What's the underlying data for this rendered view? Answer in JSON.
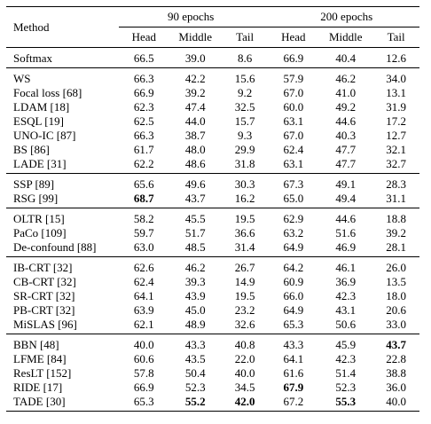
{
  "header": {
    "method": "Method",
    "group1": "90 epochs",
    "group2": "200 epochs",
    "sub": [
      "Head",
      "Middle",
      "Tail",
      "Head",
      "Middle",
      "Tail"
    ]
  },
  "groups": [
    {
      "rows": [
        {
          "method": "Softmax",
          "v": [
            "66.5",
            "39.0",
            "8.6",
            "66.9",
            "40.4",
            "12.6"
          ],
          "bold": []
        }
      ]
    },
    {
      "rows": [
        {
          "method": "WS",
          "v": [
            "66.3",
            "42.2",
            "15.6",
            "57.9",
            "46.2",
            "34.0"
          ],
          "bold": []
        },
        {
          "method": "Focal loss [68]",
          "v": [
            "66.9",
            "39.2",
            "9.2",
            "67.0",
            "41.0",
            "13.1"
          ],
          "bold": []
        },
        {
          "method": "LDAM [18]",
          "v": [
            "62.3",
            "47.4",
            "32.5",
            "60.0",
            "49.2",
            "31.9"
          ],
          "bold": []
        },
        {
          "method": "ESQL [19]",
          "v": [
            "62.5",
            "44.0",
            "15.7",
            "63.1",
            "44.6",
            "17.2"
          ],
          "bold": []
        },
        {
          "method": "UNO-IC [87]",
          "v": [
            "66.3",
            "38.7",
            "9.3",
            "67.0",
            "40.3",
            "12.7"
          ],
          "bold": []
        },
        {
          "method": "BS [86]",
          "v": [
            "61.7",
            "48.0",
            "29.9",
            "62.4",
            "47.7",
            "32.1"
          ],
          "bold": []
        },
        {
          "method": "LADE [31]",
          "v": [
            "62.2",
            "48.6",
            "31.8",
            "63.1",
            "47.7",
            "32.7"
          ],
          "bold": []
        }
      ]
    },
    {
      "rows": [
        {
          "method": "SSP [89]",
          "v": [
            "65.6",
            "49.6",
            "30.3",
            "67.3",
            "49.1",
            "28.3"
          ],
          "bold": []
        },
        {
          "method": "RSG [99]",
          "v": [
            "68.7",
            "43.7",
            "16.2",
            "65.0",
            "49.4",
            "31.1"
          ],
          "bold": [
            0
          ]
        }
      ]
    },
    {
      "rows": [
        {
          "method": "OLTR [15]",
          "v": [
            "58.2",
            "45.5",
            "19.5",
            "62.9",
            "44.6",
            "18.8"
          ],
          "bold": []
        },
        {
          "method": "PaCo [109]",
          "v": [
            "59.7",
            "51.7",
            "36.6",
            "63.2",
            "51.6",
            "39.2"
          ],
          "bold": []
        },
        {
          "method": "De-confound [88]",
          "v": [
            "63.0",
            "48.5",
            "31.4",
            "64.9",
            "46.9",
            "28.1"
          ],
          "bold": []
        }
      ]
    },
    {
      "rows": [
        {
          "method": "IB-CRT [32]",
          "v": [
            "62.6",
            "46.2",
            "26.7",
            "64.2",
            "46.1",
            "26.0"
          ],
          "bold": []
        },
        {
          "method": "CB-CRT [32]",
          "v": [
            "62.4",
            "39.3",
            "14.9",
            "60.9",
            "36.9",
            "13.5"
          ],
          "bold": []
        },
        {
          "method": "SR-CRT [32]",
          "v": [
            "64.1",
            "43.9",
            "19.5",
            "66.0",
            "42.3",
            "18.0"
          ],
          "bold": []
        },
        {
          "method": "PB-CRT [32]",
          "v": [
            "63.9",
            "45.0",
            "23.2",
            "64.9",
            "43.1",
            "20.6"
          ],
          "bold": []
        },
        {
          "method": "MiSLAS [96]",
          "v": [
            "62.1",
            "48.9",
            "32.6",
            "65.3",
            "50.6",
            "33.0"
          ],
          "bold": []
        }
      ]
    },
    {
      "rows": [
        {
          "method": "BBN [48]",
          "v": [
            "40.0",
            "43.3",
            "40.8",
            "43.3",
            "45.9",
            "43.7"
          ],
          "bold": [
            5
          ]
        },
        {
          "method": "LFME [84]",
          "v": [
            "60.6",
            "43.5",
            "22.0",
            "64.1",
            "42.3",
            "22.8"
          ],
          "bold": []
        },
        {
          "method": "ResLT [152]",
          "v": [
            "57.8",
            "50.4",
            "40.0",
            "61.6",
            "51.4",
            "38.8"
          ],
          "bold": []
        },
        {
          "method": "RIDE [17]",
          "v": [
            "66.9",
            "52.3",
            "34.5",
            "67.9",
            "52.3",
            "36.0"
          ],
          "bold": [
            3
          ]
        },
        {
          "method": "TADE [30]",
          "v": [
            "65.3",
            "55.2",
            "42.0",
            "67.2",
            "55.3",
            "40.0"
          ],
          "bold": [
            1,
            2,
            4
          ]
        }
      ]
    }
  ]
}
